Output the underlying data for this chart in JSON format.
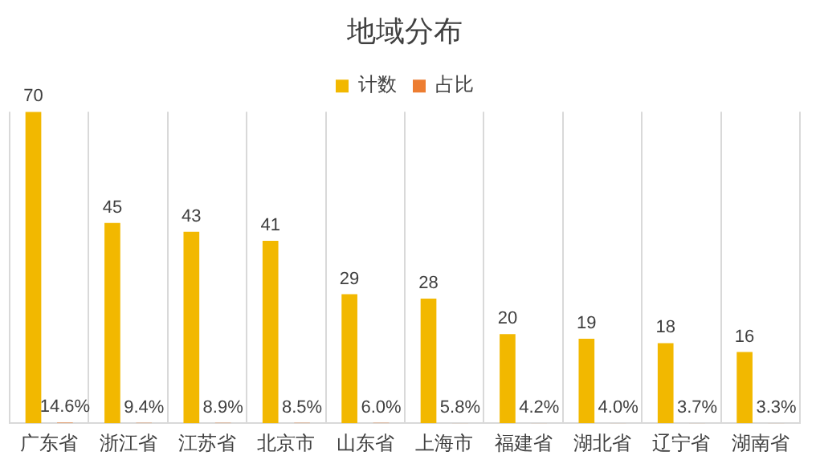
{
  "chart_data": {
    "type": "bar",
    "title": "地域分布",
    "categories": [
      "广东省",
      "浙江省",
      "江苏省",
      "北京市",
      "山东省",
      "上海市",
      "福建省",
      "湖北省",
      "辽宁省",
      "湖南省"
    ],
    "series": [
      {
        "name": "计数",
        "color": "#f2b800",
        "values": [
          70,
          45,
          43,
          41,
          29,
          28,
          20,
          19,
          18,
          16
        ]
      },
      {
        "name": "占比",
        "color": "#ed7d31",
        "values": [
          0.146,
          0.094,
          0.089,
          0.085,
          0.06,
          0.058,
          0.042,
          0.04,
          0.037,
          0.033
        ],
        "value_labels": [
          "14.6%",
          "9.4%",
          "8.9%",
          "8.5%",
          "6.0%",
          "5.8%",
          "4.2%",
          "4.0%",
          "3.7%",
          "3.3%"
        ]
      }
    ],
    "data_labels": true,
    "grid": "x",
    "legend": "top"
  }
}
